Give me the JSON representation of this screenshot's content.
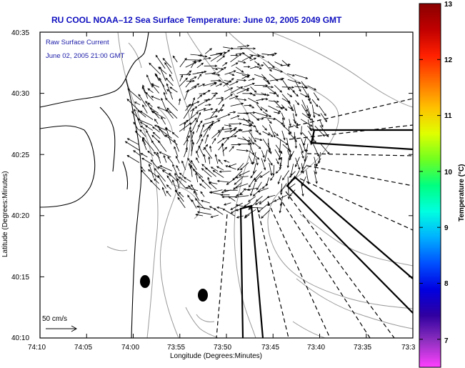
{
  "title": "RU COOL  NOAA–12  Sea Surface Temperature:  June 02, 2005 2049 GMT",
  "inset": {
    "line1": "Raw Surface Current",
    "line2": "June 02, 2005 21:00 GMT"
  },
  "scale": {
    "label": "50 cm/s"
  },
  "axes": {
    "xlabel": "Longitude (Degrees:Minutes)",
    "ylabel": "Latitude (Degrees:Minutes)",
    "xticks": [
      "74:10",
      "74:05",
      "74:00",
      "73:55",
      "73:50",
      "73:45",
      "73:40",
      "73:35",
      "73:3"
    ],
    "yticks": [
      "40:35",
      "40:30",
      "40:25",
      "40:20",
      "40:15",
      "40:10"
    ]
  },
  "colorbar": {
    "title": "Temperature (°C)",
    "ticks": [
      "13",
      "12",
      "11",
      "10",
      "9",
      "8",
      "7"
    ],
    "colors": [
      "#8b0000",
      "#c00000",
      "#ff2000",
      "#ff7000",
      "#ffc000",
      "#e0ff00",
      "#70ff20",
      "#00ff80",
      "#00ffe0",
      "#00b0ff",
      "#0050ff",
      "#0000e0",
      "#3000a0",
      "#9030c0",
      "#ff40ff"
    ]
  },
  "chart_data": {
    "type": "vector-field map",
    "x_range": [
      "74:10",
      "73:30"
    ],
    "y_range": [
      "40:10",
      "40:35"
    ],
    "temperature_range_C": [
      6.5,
      13
    ],
    "vector_scale": "50 cm/s"
  }
}
